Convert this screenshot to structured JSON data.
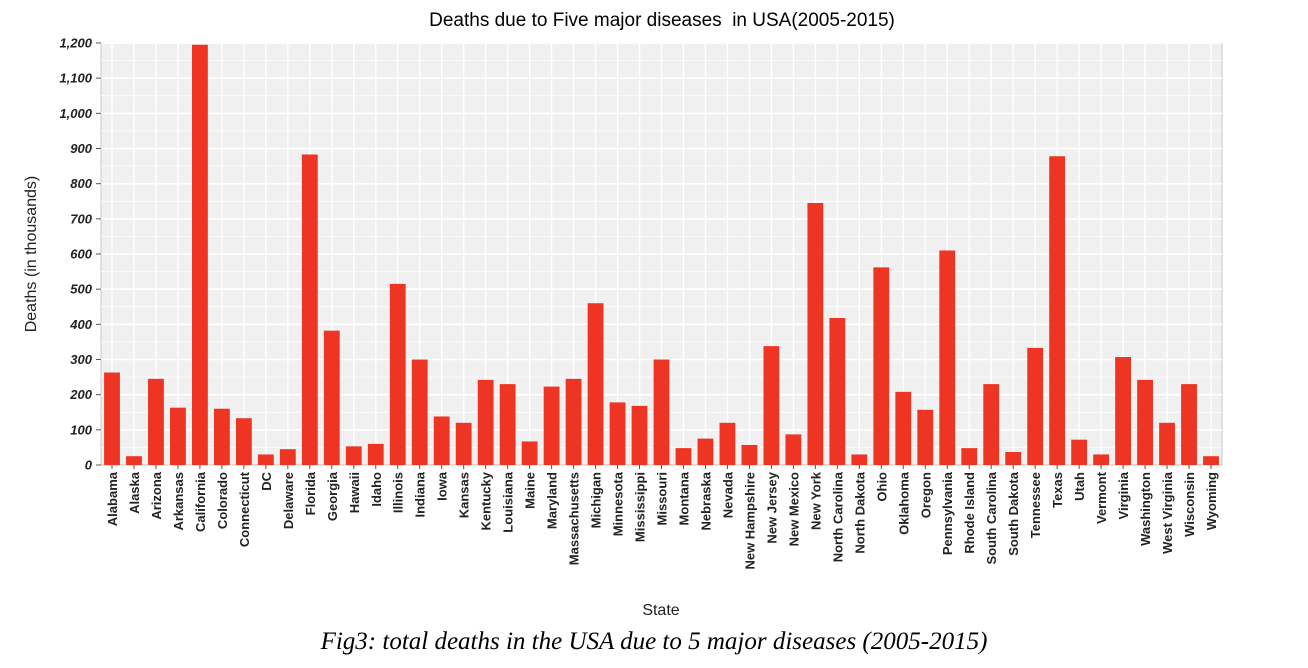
{
  "caption": "Fig3: total deaths in the USA due to 5 major diseases (2005-2015)",
  "chart_data": {
    "type": "bar",
    "title": "Deaths due to Five major diseases  in USA(2005-2015)",
    "xlabel": "State",
    "ylabel": "Deaths (in thousands)",
    "ylim": [
      0,
      1200
    ],
    "yticks": [
      0,
      100,
      200,
      300,
      400,
      500,
      600,
      700,
      800,
      900,
      1000,
      1100,
      1200
    ],
    "ytick_labels": [
      "0",
      "100",
      "200",
      "300",
      "400",
      "500",
      "600",
      "700",
      "800",
      "900",
      "1,000",
      "1,100",
      "1,200"
    ],
    "grid": true,
    "bar_color": "#ee3524",
    "panel_color": "#f0f0f0",
    "categories": [
      "Alabama",
      "Alaska",
      "Arizona",
      "Arkansas",
      "California",
      "Colorado",
      "Connecticut",
      "DC",
      "Delaware",
      "Florida",
      "Georgia",
      "Hawaii",
      "Idaho",
      "Illinois",
      "Indiana",
      "Iowa",
      "Kansas",
      "Kentucky",
      "Louisiana",
      "Maine",
      "Maryland",
      "Massachusetts",
      "Michigan",
      "Minnesota",
      "Mississippi",
      "Missouri",
      "Montana",
      "Nebraska",
      "Nevada",
      "New Hampshire",
      "New Jersey",
      "New Mexico",
      "New York",
      "North Carolina",
      "North Dakota",
      "Ohio",
      "Oklahoma",
      "Oregon",
      "Pennsylvania",
      "Rhode Island",
      "South Carolina",
      "South Dakota",
      "Tennessee",
      "Texas",
      "Utah",
      "Vermont",
      "Virginia",
      "Washington",
      "West Virginia",
      "Wisconsin",
      "Wyoming"
    ],
    "values": [
      263,
      25,
      245,
      163,
      1195,
      160,
      133,
      30,
      45,
      883,
      382,
      53,
      60,
      515,
      300,
      138,
      120,
      242,
      230,
      67,
      223,
      245,
      460,
      178,
      168,
      300,
      48,
      75,
      120,
      57,
      338,
      87,
      745,
      418,
      30,
      562,
      208,
      157,
      610,
      48,
      230,
      37,
      333,
      878,
      72,
      30,
      307,
      242,
      120,
      230,
      25
    ]
  }
}
